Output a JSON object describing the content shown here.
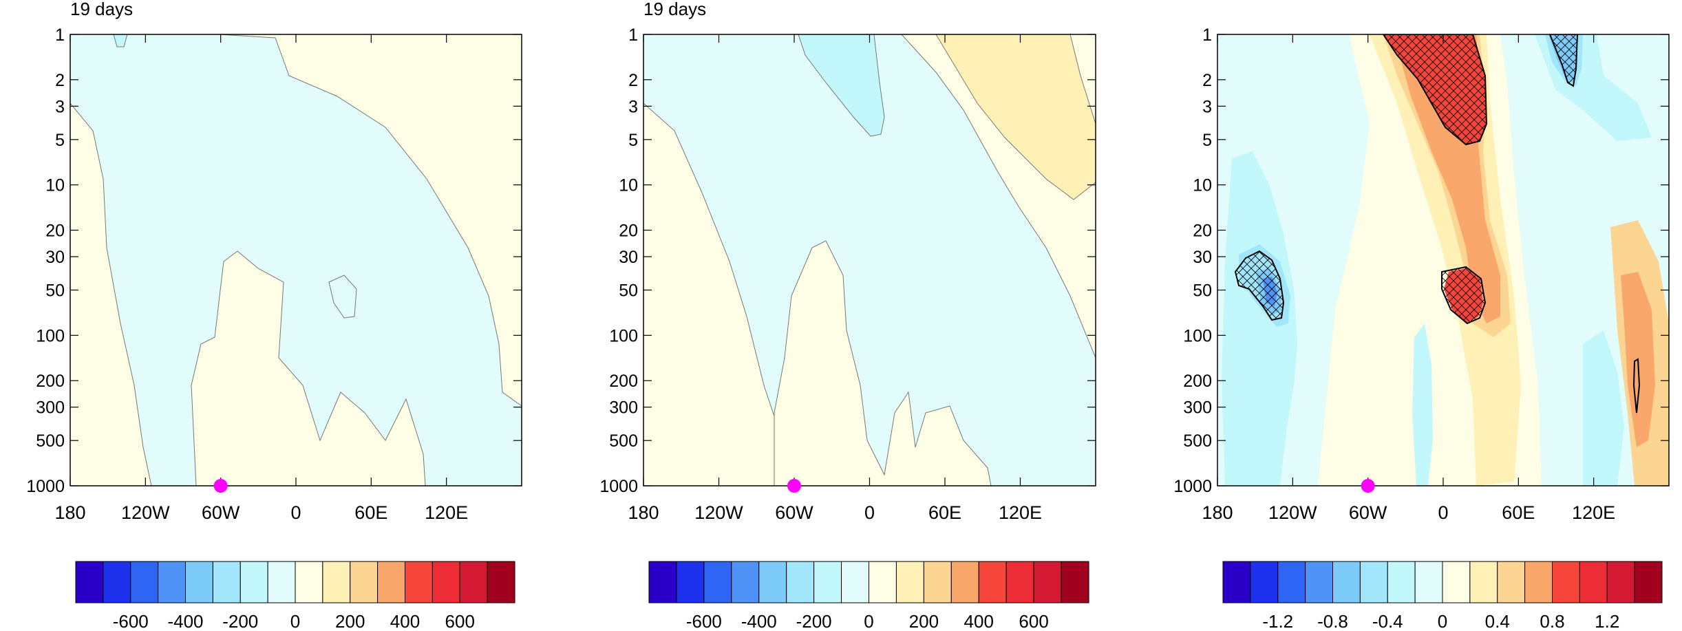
{
  "chart_data": [
    {
      "type": "heatmap",
      "title": "19 days",
      "x_ticks": [
        "180",
        "120W",
        "60W",
        "0",
        "60E",
        "120E"
      ],
      "x_range": [
        -180,
        180
      ],
      "y_ticks": [
        "1",
        "2",
        "3",
        "5",
        "10",
        "20",
        "30",
        "50",
        "100",
        "200",
        "300",
        "500",
        "1000"
      ],
      "y_range": [
        1,
        1000
      ],
      "y_scale": "log-reversed",
      "marker": {
        "lon": -60,
        "level": 1000,
        "color": "#ff00ff"
      },
      "colorbar": {
        "colors": [
          "#2a00c8",
          "#1e32ee",
          "#2e65f4",
          "#4f92f8",
          "#7ccbf9",
          "#a1e6fb",
          "#c2f7fb",
          "#e2fbfb",
          "#fefde6",
          "#fff0b6",
          "#fdd592",
          "#faa76c",
          "#f6463c",
          "#ec2d36",
          "#d41a32",
          "#a1001e"
        ],
        "labels": [
          "-600",
          "-400",
          "-200",
          "0",
          "200",
          "400",
          "600"
        ]
      }
    },
    {
      "type": "heatmap",
      "title": "19 days",
      "x_ticks": [
        "180",
        "120W",
        "60W",
        "0",
        "60E",
        "120E"
      ],
      "x_range": [
        -180,
        180
      ],
      "y_ticks": [
        "1",
        "2",
        "3",
        "5",
        "10",
        "20",
        "30",
        "50",
        "100",
        "200",
        "300",
        "500",
        "1000"
      ],
      "y_range": [
        1,
        1000
      ],
      "y_scale": "log-reversed",
      "marker": {
        "lon": -60,
        "level": 1000,
        "color": "#ff00ff"
      },
      "colorbar": {
        "colors": [
          "#2a00c8",
          "#1e32ee",
          "#2e65f4",
          "#4f92f8",
          "#7ccbf9",
          "#a1e6fb",
          "#c2f7fb",
          "#e2fbfb",
          "#fefde6",
          "#fff0b6",
          "#fdd592",
          "#faa76c",
          "#f6463c",
          "#ec2d36",
          "#d41a32",
          "#a1001e"
        ],
        "labels": [
          "-600",
          "-400",
          "-200",
          "0",
          "200",
          "400",
          "600"
        ]
      }
    },
    {
      "type": "heatmap",
      "title": "",
      "x_ticks": [
        "180",
        "120W",
        "60W",
        "0",
        "60E",
        "120E"
      ],
      "x_range": [
        -180,
        180
      ],
      "y_ticks": [
        "1",
        "2",
        "3",
        "5",
        "10",
        "20",
        "30",
        "50",
        "100",
        "200",
        "300",
        "500",
        "1000"
      ],
      "y_range": [
        1,
        1000
      ],
      "y_scale": "log-reversed",
      "marker": {
        "lon": -60,
        "level": 1000,
        "color": "#ff00ff"
      },
      "colorbar": {
        "colors": [
          "#2a00c8",
          "#1e32ee",
          "#2e65f4",
          "#4f92f8",
          "#7ccbf9",
          "#a1e6fb",
          "#c2f7fb",
          "#e2fbfb",
          "#fefde6",
          "#fff0b6",
          "#fdd592",
          "#faa76c",
          "#f6463c",
          "#ec2d36",
          "#d41a32",
          "#a1001e"
        ],
        "labels": [
          "-1.2",
          "-0.8",
          "-0.4",
          "0",
          "0.4",
          "0.8",
          "1.2"
        ]
      }
    }
  ]
}
